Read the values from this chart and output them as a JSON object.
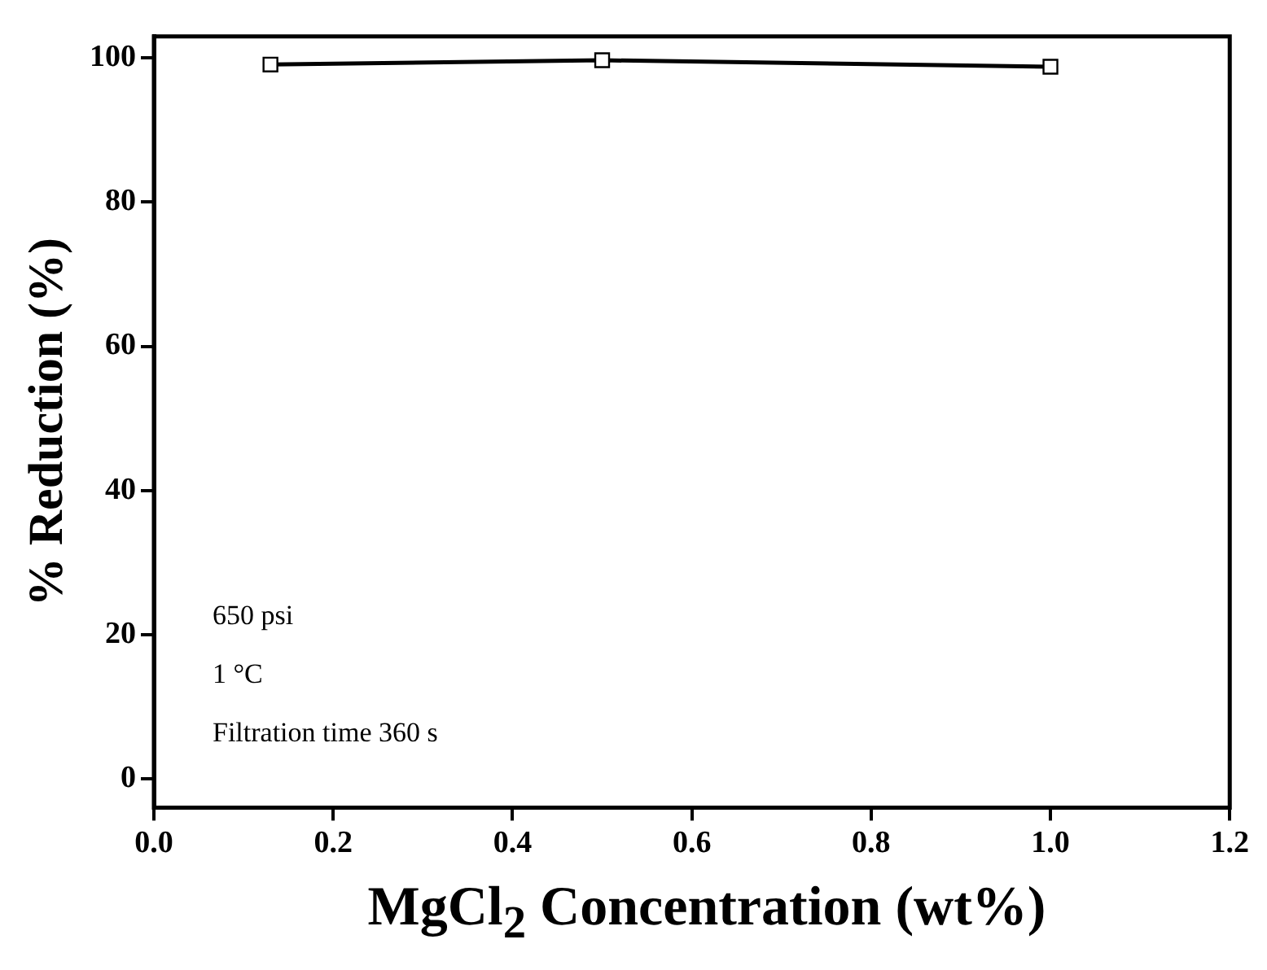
{
  "chart_data": {
    "type": "line",
    "xlabel": "MgCl$_{2}$ Concentration (wt%)",
    "ylabel": "% Reduction (%)",
    "x": [
      0.13,
      0.5,
      1.0
    ],
    "series": [
      {
        "color": "#000000",
        "values": [
          99.1,
          99.7,
          98.8
        ]
      }
    ],
    "xlim": [
      0,
      1.2
    ],
    "xticks": [
      {
        "value": 0,
        "label": "0.0"
      },
      {
        "value": 0.2,
        "label": "0.2"
      },
      {
        "value": 0.4,
        "label": "0.4"
      },
      {
        "value": 0.6,
        "label": "0.6"
      },
      {
        "value": 0.8,
        "label": "0.8"
      },
      {
        "value": 1,
        "label": "1.0"
      },
      {
        "value": 1.2,
        "label": "1.2"
      }
    ],
    "ylim": [
      -4,
      103
    ],
    "yticks": [
      0,
      20,
      40,
      60,
      80,
      100
    ],
    "marker": "square",
    "line_style": "solid",
    "grid": false,
    "legend": false,
    "annotations": [
      "650 psi",
      "1 °C",
      "Filtration time 360 s"
    ]
  }
}
